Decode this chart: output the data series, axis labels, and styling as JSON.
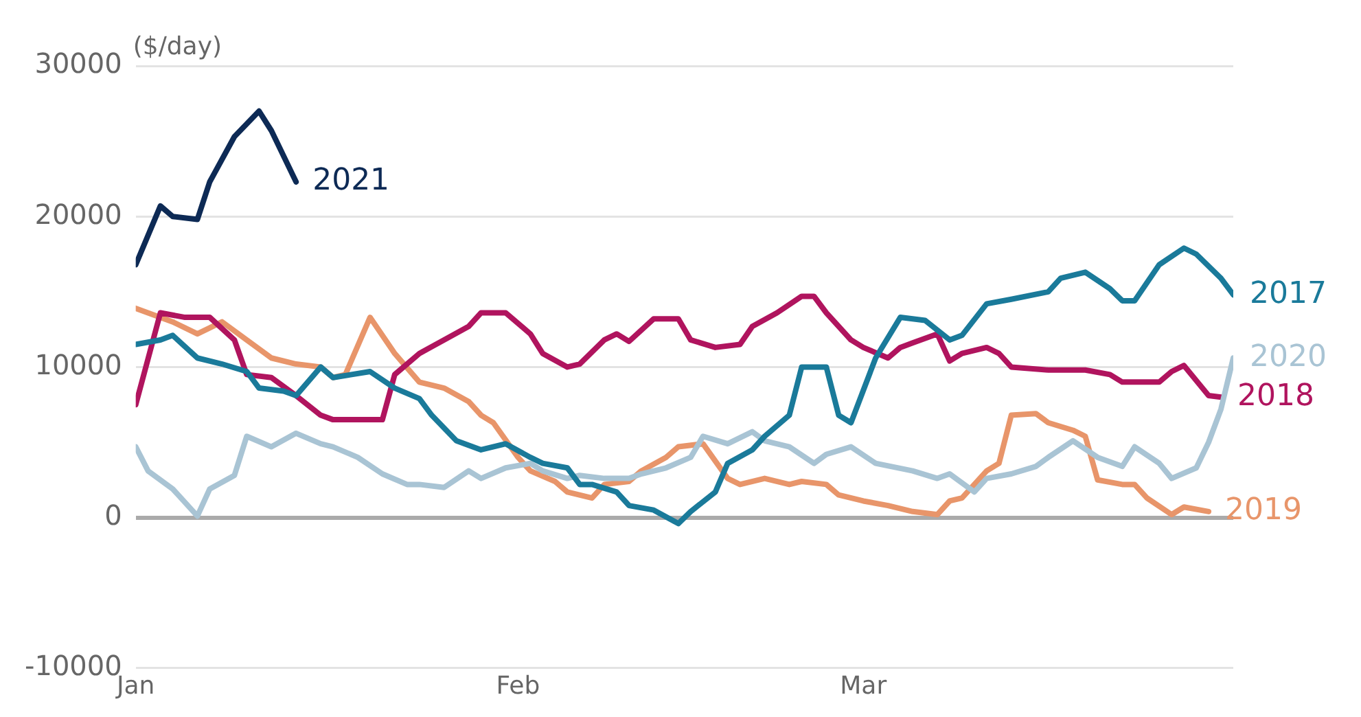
{
  "chart_data": {
    "type": "line",
    "ylabel": "($/day)",
    "ylim": [
      -10000,
      30000
    ],
    "yticks": [
      -10000,
      0,
      10000,
      20000,
      30000
    ],
    "xlim": [
      "--01-01",
      "--03-31"
    ],
    "xticks": [
      {
        "value": "--01-01",
        "label": "Jan"
      },
      {
        "value": "--02-01",
        "label": "Feb"
      },
      {
        "value": "--03-01",
        "label": "Mar"
      }
    ],
    "grid": "y",
    "legend": false,
    "marker": "none",
    "line_style": "solid",
    "series": [
      {
        "name": "2021",
        "color": "#0d2a55",
        "x": [
          "--01-01",
          "--01-03",
          "--01-04",
          "--01-06",
          "--01-07",
          "--01-09",
          "--01-11",
          "--01-12",
          "--01-14"
        ],
        "values": [
          16800,
          20700,
          20000,
          19800,
          22300,
          25300,
          27000,
          25700,
          22300
        ]
      },
      {
        "name": "2017",
        "color": "#1a7a9a",
        "x": [
          "--01-01",
          "--01-03",
          "--01-04",
          "--01-06",
          "--01-08",
          "--01-10",
          "--01-11",
          "--01-13",
          "--01-14",
          "--01-16",
          "--01-17",
          "--01-20",
          "--01-22",
          "--01-24",
          "--01-25",
          "--01-27",
          "--01-29",
          "--01-31",
          "--02-02",
          "--02-03",
          "--02-05",
          "--02-06",
          "--02-07",
          "--02-09",
          "--02-10",
          "--02-12",
          "--02-14",
          "--02-15",
          "--02-17",
          "--02-18",
          "--02-20",
          "--02-21",
          "--02-23",
          "--02-24",
          "--02-26",
          "--02-27",
          "--02-28",
          "--03-02",
          "--03-04",
          "--03-06",
          "--03-08",
          "--03-09",
          "--03-11",
          "--03-13",
          "--03-16",
          "--03-17",
          "--03-19",
          "--03-21",
          "--03-22",
          "--03-23",
          "--03-25",
          "--03-27",
          "--03-28",
          "--03-30",
          "--03-31"
        ],
        "values": [
          11500,
          11800,
          12100,
          10600,
          10200,
          9700,
          8600,
          8400,
          8100,
          10000,
          9300,
          9700,
          8600,
          7900,
          6800,
          5100,
          4500,
          4900,
          4000,
          3600,
          3300,
          2200,
          2200,
          1700,
          800,
          500,
          -400,
          400,
          1700,
          3600,
          4500,
          5400,
          6800,
          10000,
          10000,
          6800,
          6300,
          10600,
          13300,
          13100,
          11800,
          12100,
          14200,
          14500,
          15000,
          15900,
          16300,
          15200,
          14400,
          14400,
          16800,
          17900,
          17500,
          15900,
          14800
        ]
      },
      {
        "name": "2020",
        "color": "#a9c4d4",
        "x": [
          "--01-01",
          "--01-02",
          "--01-04",
          "--01-06",
          "--01-07",
          "--01-09",
          "--01-10",
          "--01-12",
          "--01-14",
          "--01-16",
          "--01-17",
          "--01-19",
          "--01-21",
          "--01-23",
          "--01-24",
          "--01-26",
          "--01-28",
          "--01-29",
          "--01-31",
          "--02-02",
          "--02-03",
          "--02-05",
          "--02-06",
          "--02-08",
          "--02-10",
          "--02-11",
          "--02-13",
          "--02-15",
          "--02-16",
          "--02-18",
          "--02-20",
          "--02-21",
          "--02-23",
          "--02-25",
          "--02-26",
          "--02-28",
          "--03-02",
          "--03-05",
          "--03-07",
          "--03-08",
          "--03-10",
          "--03-11",
          "--03-13",
          "--03-15",
          "--03-16",
          "--03-18",
          "--03-20",
          "--03-22",
          "--03-23",
          "--03-25",
          "--03-26",
          "--03-28",
          "--03-29",
          "--03-30",
          "--03-31"
        ],
        "values": [
          4700,
          3100,
          1900,
          100,
          1900,
          2800,
          5400,
          4700,
          5600,
          4900,
          4700,
          4000,
          2900,
          2200,
          2200,
          2000,
          3100,
          2600,
          3300,
          3600,
          3100,
          2600,
          2800,
          2600,
          2600,
          2900,
          3300,
          4000,
          5400,
          4900,
          5700,
          5100,
          4700,
          3600,
          4200,
          4700,
          3600,
          3100,
          2600,
          2900,
          1700,
          2600,
          2900,
          3400,
          4000,
          5100,
          4000,
          3400,
          4700,
          3600,
          2600,
          3300,
          5000,
          7200,
          10600
        ]
      },
      {
        "name": "2018",
        "color": "#b0145e",
        "x": [
          "--01-01",
          "--01-03",
          "--01-05",
          "--01-07",
          "--01-09",
          "--01-10",
          "--01-12",
          "--01-14",
          "--01-16",
          "--01-17",
          "--01-20",
          "--01-21",
          "--01-22",
          "--01-24",
          "--01-26",
          "--01-28",
          "--01-29",
          "--01-31",
          "--02-02",
          "--02-03",
          "--02-05",
          "--02-06",
          "--02-08",
          "--02-09",
          "--02-10",
          "--02-12",
          "--02-14",
          "--02-15",
          "--02-17",
          "--02-19",
          "--02-20",
          "--02-22",
          "--02-24",
          "--02-25",
          "--02-26",
          "--02-28",
          "--03-01",
          "--03-03",
          "--03-04",
          "--03-05",
          "--03-07",
          "--03-08",
          "--03-09",
          "--03-11",
          "--03-12",
          "--03-13",
          "--03-16",
          "--03-19",
          "--03-21",
          "--03-22",
          "--03-25",
          "--03-26",
          "--03-27",
          "--03-29",
          "--03-30"
        ],
        "values": [
          7500,
          13600,
          13300,
          13300,
          11800,
          9500,
          9300,
          8100,
          6800,
          6500,
          6500,
          6500,
          9500,
          10900,
          11800,
          12700,
          13600,
          13600,
          12200,
          10900,
          10000,
          10200,
          11800,
          12200,
          11700,
          13200,
          13200,
          11800,
          11300,
          11500,
          12700,
          13600,
          14700,
          14700,
          13600,
          11800,
          11300,
          10600,
          11300,
          11600,
          12200,
          10400,
          10900,
          11300,
          10900,
          10000,
          9800,
          9800,
          9500,
          9000,
          9000,
          9700,
          10100,
          8100,
          8000
        ]
      },
      {
        "name": "2019",
        "color": "#e8956a",
        "x": [
          "--01-01",
          "--01-04",
          "--01-06",
          "--01-08",
          "--01-10",
          "--01-12",
          "--01-14",
          "--01-16",
          "--01-17",
          "--01-18",
          "--01-20",
          "--01-22",
          "--01-24",
          "--01-26",
          "--01-28",
          "--01-29",
          "--01-30",
          "--02-01",
          "--02-02",
          "--02-04",
          "--02-05",
          "--02-07",
          "--02-08",
          "--02-10",
          "--02-11",
          "--02-13",
          "--02-14",
          "--02-16",
          "--02-18",
          "--02-19",
          "--02-21",
          "--02-23",
          "--02-24",
          "--02-26",
          "--02-27",
          "--03-01",
          "--03-03",
          "--03-05",
          "--03-07",
          "--03-08",
          "--03-09",
          "--03-11",
          "--03-12",
          "--03-13",
          "--03-15",
          "--03-16",
          "--03-18",
          "--03-19",
          "--03-20",
          "--03-22",
          "--03-23",
          "--03-24",
          "--03-26",
          "--03-27",
          "--03-29"
        ],
        "values": [
          13900,
          13000,
          12200,
          13000,
          11800,
          10600,
          10200,
          10000,
          9300,
          9500,
          13300,
          10900,
          9000,
          8600,
          7700,
          6800,
          6300,
          4000,
          3100,
          2400,
          1700,
          1300,
          2200,
          2400,
          3100,
          4000,
          4700,
          4900,
          2600,
          2200,
          2600,
          2200,
          2400,
          2200,
          1500,
          1100,
          800,
          400,
          200,
          1100,
          1300,
          3100,
          3600,
          6800,
          6900,
          6300,
          5800,
          5400,
          2500,
          2200,
          2200,
          1300,
          200,
          700,
          400
        ]
      }
    ]
  }
}
